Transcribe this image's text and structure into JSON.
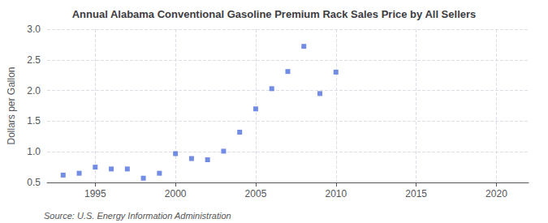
{
  "chart_data": {
    "type": "scatter",
    "title": "Annual Alabama Conventional Gasoline Premium Rack Sales Price by All Sellers",
    "ylabel": "Dollars per Gallon",
    "annotations": [
      "Source: U.S. Energy Information Administration"
    ],
    "x": [
      1993,
      1994,
      1995,
      1996,
      1997,
      1998,
      1999,
      2000,
      2001,
      2002,
      2003,
      2004,
      2005,
      2006,
      2007,
      2008,
      2009,
      2010
    ],
    "values": [
      0.62,
      0.65,
      0.75,
      0.72,
      0.72,
      0.57,
      0.65,
      0.97,
      0.89,
      0.87,
      1.01,
      1.32,
      1.7,
      2.03,
      2.31,
      2.72,
      1.95,
      2.3
    ],
    "marker": "square",
    "xlim": [
      1992,
      2022
    ],
    "xticks": [
      1995,
      2000,
      2005,
      2010,
      2015,
      2020
    ],
    "ylim": [
      0.5,
      3.0
    ],
    "yticks": [
      0.5,
      {
        "value": 1.0,
        "label": "1.0"
      },
      1.5,
      {
        "value": 2.0,
        "label": "2.0"
      },
      2.5,
      {
        "value": 3.0,
        "label": "3.0"
      }
    ],
    "grid": true
  }
}
